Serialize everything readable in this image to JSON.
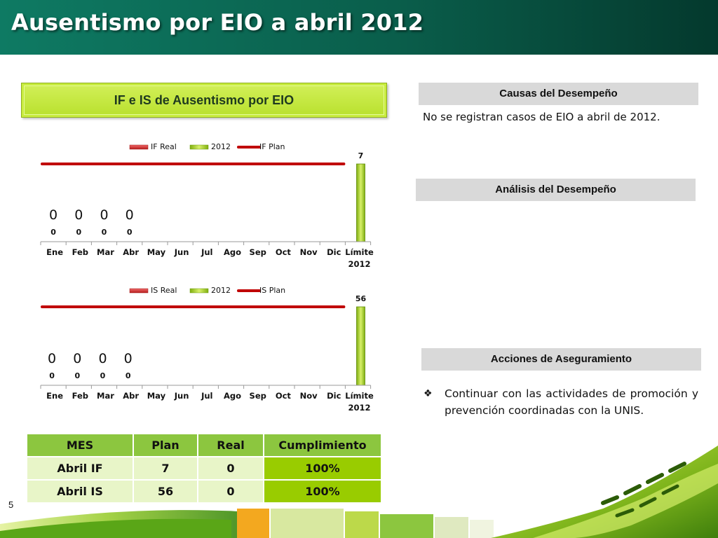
{
  "slide": {
    "title": "Ausentismo por EIO a abril 2012",
    "page_number": "5"
  },
  "chart_panel": {
    "title": "IF e IS de Ausentismo por EIO"
  },
  "causas": {
    "header": "Causas del Desempeño",
    "text": "No se registran casos de EIO a abril de 2012."
  },
  "analisis": {
    "header": "Análisis del Desempeño"
  },
  "acciones": {
    "header": "Acciones de Aseguramiento",
    "bullet_icon": "diamond-bullet-icon",
    "items": [
      "Continuar con las actividades de promoción y prevención coordinadas con la UNIS."
    ]
  },
  "chart_data": [
    {
      "type": "bar",
      "categories": [
        "Ene",
        "Feb",
        "Mar",
        "Abr",
        "May",
        "Jun",
        "Jul",
        "Ago",
        "Sep",
        "Oct",
        "Nov",
        "Dic",
        "Límite 2012"
      ],
      "series": [
        {
          "name": "IF Real",
          "type": "bar",
          "color": "#d62a2a",
          "values": [
            0,
            0,
            0,
            0,
            null,
            null,
            null,
            null,
            null,
            null,
            null,
            null,
            null
          ]
        },
        {
          "name": "2012",
          "type": "bar",
          "color": "#a6d41e",
          "values": [
            null,
            null,
            null,
            null,
            null,
            null,
            null,
            null,
            null,
            null,
            null,
            null,
            7
          ]
        },
        {
          "name": "IF Plan",
          "type": "line",
          "color": "#c00000",
          "values": [
            7,
            7,
            7,
            7,
            7,
            7,
            7,
            7,
            7,
            7,
            7,
            7,
            null
          ]
        }
      ],
      "data_labels_large": [
        "0",
        "0",
        "0",
        "0"
      ],
      "data_labels_small": [
        "0",
        "0",
        "0",
        "0"
      ],
      "limit_label": "7",
      "ylim": [
        0,
        8.2
      ],
      "legend_position": "top",
      "grid": false
    },
    {
      "type": "bar",
      "categories": [
        "Ene",
        "Feb",
        "Mar",
        "Abr",
        "May",
        "Jun",
        "Jul",
        "Ago",
        "Sep",
        "Oct",
        "Nov",
        "Dic",
        "Límite 2012"
      ],
      "series": [
        {
          "name": "IS Real",
          "type": "bar",
          "color": "#d62a2a",
          "values": [
            0,
            0,
            0,
            0,
            null,
            null,
            null,
            null,
            null,
            null,
            null,
            null,
            null
          ]
        },
        {
          "name": "2012",
          "type": "bar",
          "color": "#a6d41e",
          "values": [
            null,
            null,
            null,
            null,
            null,
            null,
            null,
            null,
            null,
            null,
            null,
            null,
            56
          ]
        },
        {
          "name": "IS Plan",
          "type": "line",
          "color": "#c00000",
          "values": [
            56,
            56,
            56,
            56,
            56,
            56,
            56,
            56,
            56,
            56,
            56,
            56,
            null
          ]
        }
      ],
      "data_labels_large": [
        "0",
        "0",
        "0",
        "0"
      ],
      "data_labels_small": [
        "0",
        "0",
        "0",
        "0"
      ],
      "limit_label": "56",
      "ylim": [
        0,
        65
      ],
      "legend_position": "top",
      "grid": false
    }
  ],
  "summary_table": {
    "headers": [
      "MES",
      "Plan",
      "Real",
      "Cumplimiento"
    ],
    "rows": [
      [
        "Abril IF",
        "7",
        "0",
        "100%"
      ],
      [
        "Abril IS",
        "56",
        "0",
        "100%"
      ]
    ],
    "colors": {
      "header": "#8cc63f",
      "cell": "#e8f5c8",
      "compliance": "#99cc00"
    }
  },
  "colors": {
    "title_bar": "#0a5e4b",
    "accent_green": "#a6d41e",
    "plan_red": "#c00000"
  }
}
